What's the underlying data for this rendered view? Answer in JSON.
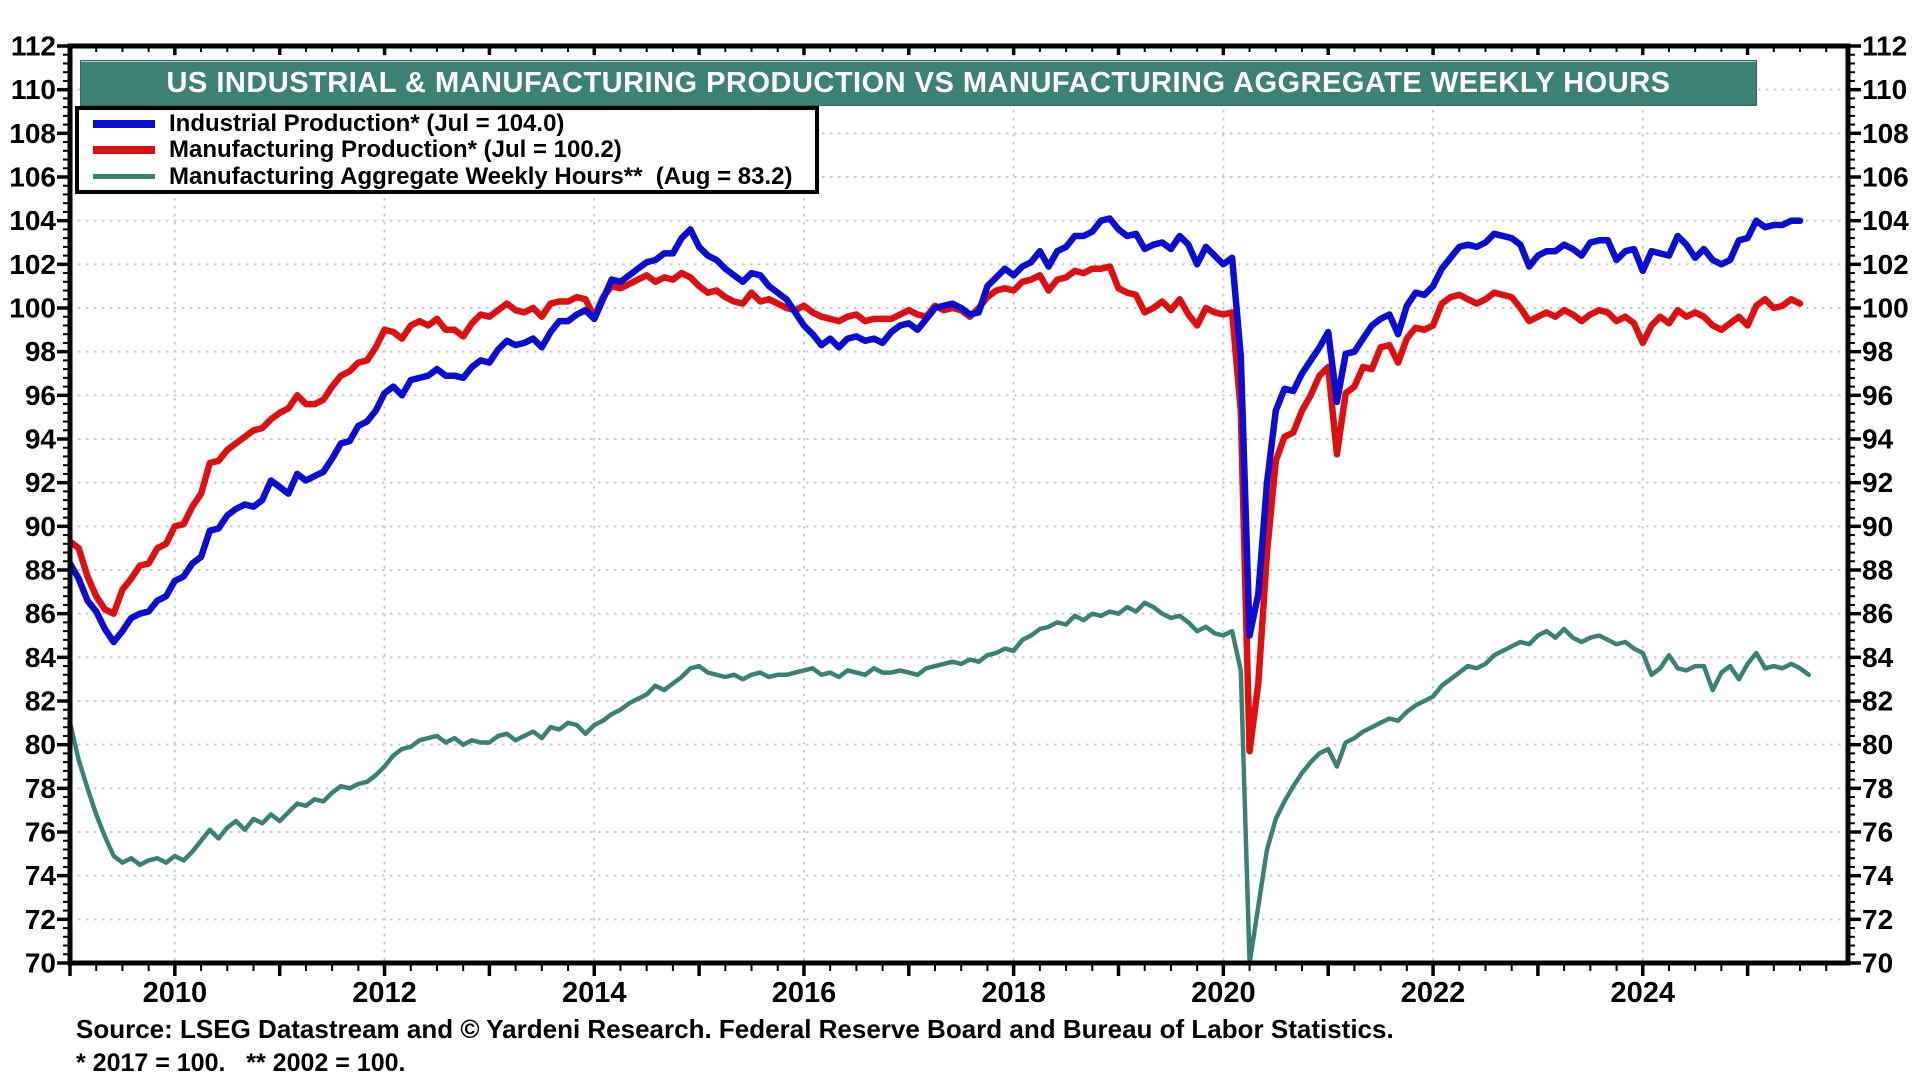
{
  "title": "US INDUSTRIAL & MANUFACTURING PRODUCTION VS MANUFACTURING AGGREGATE WEEKLY HOURS",
  "source_line": "Source: LSEG Datastream and © Yardeni Research. Federal Reserve Board and Bureau of Labor Statistics.",
  "footnote": "* 2017 = 100.   ** 2002 = 100.",
  "colors": {
    "banner": "#3d8174",
    "industrial": "#0d0dd1",
    "manufacturing": "#dc1010",
    "hours": "#3b8173",
    "grid": "#c9c9c9",
    "axis": "#000000",
    "text": "#000000"
  },
  "chart_data": {
    "type": "line",
    "title": "US INDUSTRIAL & MANUFACTURING PRODUCTION VS MANUFACTURING AGGREGATE WEEKLY HOURS",
    "frequency": "monthly",
    "x_start": "2009-01",
    "x_ticks": [
      2010,
      2012,
      2014,
      2016,
      2018,
      2020,
      2022,
      2024
    ],
    "ylim": [
      70,
      112
    ],
    "y_tick_step": 2,
    "y_minor_step": 0.4,
    "x_minor_step_years": 0.25,
    "grid": {
      "horizontal": true,
      "vertical": true,
      "vertical_step_years": 2,
      "style": "dotted"
    },
    "legend_position": "top-left",
    "dual_axis": "left and right y axes identical, 70 to 112 by 2",
    "series": [
      {
        "name": "Industrial Production* (Jul = 104.0)",
        "color": "#0d0dd1",
        "last_label": "Jul = 104.0",
        "values": [
          88.3,
          87.6,
          86.6,
          86.1,
          85.3,
          84.7,
          85.2,
          85.8,
          86.0,
          86.1,
          86.6,
          86.8,
          87.5,
          87.7,
          88.3,
          88.6,
          89.8,
          89.9,
          90.5,
          90.8,
          91.0,
          90.9,
          91.2,
          92.1,
          91.8,
          91.5,
          92.4,
          92.1,
          92.3,
          92.5,
          93.1,
          93.8,
          93.9,
          94.6,
          94.8,
          95.3,
          96.1,
          96.4,
          96.0,
          96.7,
          96.8,
          96.9,
          97.2,
          96.9,
          96.9,
          96.8,
          97.3,
          97.6,
          97.5,
          98.1,
          98.5,
          98.3,
          98.4,
          98.6,
          98.2,
          98.9,
          99.4,
          99.4,
          99.7,
          99.9,
          99.5,
          100.4,
          101.3,
          101.2,
          101.5,
          101.8,
          102.1,
          102.2,
          102.5,
          102.5,
          103.2,
          103.6,
          102.8,
          102.4,
          102.2,
          101.8,
          101.5,
          101.2,
          101.6,
          101.5,
          101.0,
          100.7,
          100.4,
          99.8,
          99.2,
          98.8,
          98.3,
          98.6,
          98.2,
          98.6,
          98.7,
          98.5,
          98.6,
          98.4,
          98.9,
          99.2,
          99.3,
          99.0,
          99.5,
          100.0,
          100.1,
          100.2,
          100.0,
          99.7,
          99.8,
          101.0,
          101.4,
          101.8,
          101.5,
          101.9,
          102.1,
          102.6,
          101.9,
          102.6,
          102.8,
          103.3,
          103.3,
          103.5,
          104.0,
          104.1,
          103.6,
          103.3,
          103.4,
          102.7,
          102.9,
          103.0,
          102.7,
          103.3,
          102.9,
          102.0,
          102.8,
          102.4,
          102.0,
          102.3,
          97.8,
          85.0,
          86.9,
          92.0,
          95.3,
          96.3,
          96.2,
          97.0,
          97.6,
          98.2,
          98.9,
          95.7,
          97.9,
          98.0,
          98.6,
          99.2,
          99.5,
          99.7,
          98.8,
          100.1,
          100.7,
          100.6,
          101.0,
          101.8,
          102.3,
          102.8,
          102.9,
          102.8,
          103.0,
          103.4,
          103.3,
          103.2,
          102.9,
          101.9,
          102.4,
          102.6,
          102.6,
          102.9,
          102.7,
          102.4,
          103.0,
          103.1,
          103.1,
          102.2,
          102.6,
          102.7,
          101.7,
          102.6,
          102.5,
          102.4,
          103.3,
          102.9,
          102.3,
          102.7,
          102.2,
          102.0,
          102.2,
          103.1,
          103.2,
          104.0,
          103.7,
          103.8,
          103.8,
          104.0,
          104.0
        ]
      },
      {
        "name": "Manufacturing Production* (Jul = 100.2)",
        "color": "#dc1010",
        "last_label": "Jul = 100.2",
        "values": [
          89.3,
          89.0,
          87.7,
          86.8,
          86.2,
          86.0,
          87.1,
          87.6,
          88.2,
          88.3,
          89.0,
          89.2,
          90.0,
          90.1,
          90.9,
          91.5,
          92.9,
          93.0,
          93.5,
          93.8,
          94.1,
          94.4,
          94.5,
          94.9,
          95.2,
          95.4,
          96.0,
          95.6,
          95.6,
          95.8,
          96.4,
          96.9,
          97.1,
          97.5,
          97.6,
          98.2,
          99.0,
          98.9,
          98.6,
          99.2,
          99.4,
          99.2,
          99.5,
          99.0,
          99.0,
          98.7,
          99.3,
          99.7,
          99.6,
          99.9,
          100.2,
          99.9,
          99.8,
          100.0,
          99.6,
          100.2,
          100.3,
          100.3,
          100.5,
          100.4,
          99.6,
          100.5,
          101.0,
          100.9,
          101.1,
          101.3,
          101.5,
          101.2,
          101.4,
          101.3,
          101.6,
          101.4,
          101.0,
          100.7,
          100.8,
          100.5,
          100.3,
          100.2,
          100.7,
          100.3,
          100.4,
          100.2,
          100.0,
          99.9,
          100.1,
          99.8,
          99.6,
          99.5,
          99.4,
          99.6,
          99.7,
          99.4,
          99.5,
          99.5,
          99.5,
          99.7,
          99.9,
          99.7,
          99.6,
          100.1,
          99.9,
          100.0,
          99.9,
          99.6,
          100.0,
          100.5,
          100.8,
          100.9,
          100.8,
          101.2,
          101.3,
          101.5,
          100.8,
          101.3,
          101.4,
          101.7,
          101.6,
          101.8,
          101.8,
          101.9,
          100.9,
          100.7,
          100.6,
          99.8,
          100.0,
          100.3,
          99.9,
          100.4,
          99.7,
          99.2,
          100.0,
          99.8,
          99.7,
          99.8,
          95.3,
          79.7,
          82.8,
          88.8,
          93.0,
          94.1,
          94.3,
          95.3,
          96.0,
          96.9,
          97.3,
          93.3,
          96.1,
          96.4,
          97.3,
          97.2,
          98.2,
          98.3,
          97.5,
          98.6,
          99.1,
          99.0,
          99.2,
          100.2,
          100.5,
          100.6,
          100.4,
          100.2,
          100.4,
          100.7,
          100.6,
          100.5,
          100.0,
          99.4,
          99.6,
          99.8,
          99.6,
          99.9,
          99.7,
          99.4,
          99.7,
          99.9,
          99.8,
          99.4,
          99.6,
          99.3,
          98.4,
          99.2,
          99.6,
          99.3,
          99.9,
          99.6,
          99.8,
          99.6,
          99.2,
          99.0,
          99.3,
          99.6,
          99.2,
          100.1,
          100.4,
          100.0,
          100.1,
          100.4,
          100.2
        ]
      },
      {
        "name": "Manufacturing Aggregate Weekly Hours**  (Aug = 83.2)",
        "color": "#3b8173",
        "last_label": "Aug = 83.2",
        "values": [
          81.0,
          79.3,
          78.0,
          76.8,
          75.8,
          74.9,
          74.6,
          74.8,
          74.5,
          74.7,
          74.8,
          74.6,
          74.9,
          74.7,
          75.1,
          75.6,
          76.1,
          75.7,
          76.2,
          76.5,
          76.1,
          76.6,
          76.4,
          76.8,
          76.5,
          76.9,
          77.3,
          77.2,
          77.5,
          77.4,
          77.8,
          78.1,
          78.0,
          78.2,
          78.3,
          78.6,
          79.0,
          79.5,
          79.8,
          79.9,
          80.2,
          80.3,
          80.4,
          80.1,
          80.3,
          80.0,
          80.2,
          80.1,
          80.1,
          80.4,
          80.5,
          80.2,
          80.4,
          80.6,
          80.3,
          80.8,
          80.7,
          81.0,
          80.9,
          80.5,
          80.9,
          81.1,
          81.4,
          81.6,
          81.9,
          82.1,
          82.3,
          82.7,
          82.5,
          82.8,
          83.1,
          83.5,
          83.6,
          83.3,
          83.2,
          83.1,
          83.2,
          83.0,
          83.2,
          83.3,
          83.1,
          83.2,
          83.2,
          83.3,
          83.4,
          83.5,
          83.2,
          83.3,
          83.1,
          83.4,
          83.3,
          83.2,
          83.5,
          83.3,
          83.3,
          83.4,
          83.3,
          83.2,
          83.5,
          83.6,
          83.7,
          83.8,
          83.7,
          83.9,
          83.8,
          84.1,
          84.2,
          84.4,
          84.3,
          84.8,
          85.0,
          85.3,
          85.4,
          85.6,
          85.5,
          85.9,
          85.7,
          86.0,
          85.9,
          86.1,
          86.0,
          86.3,
          86.1,
          86.5,
          86.3,
          86.0,
          85.8,
          85.9,
          85.6,
          85.2,
          85.4,
          85.1,
          85.0,
          85.2,
          83.4,
          70.0,
          72.6,
          75.2,
          76.6,
          77.4,
          78.1,
          78.7,
          79.2,
          79.6,
          79.8,
          79.0,
          80.1,
          80.3,
          80.6,
          80.8,
          81.0,
          81.2,
          81.1,
          81.5,
          81.8,
          82.0,
          82.2,
          82.7,
          83.0,
          83.3,
          83.6,
          83.5,
          83.7,
          84.1,
          84.3,
          84.5,
          84.7,
          84.6,
          85.0,
          85.2,
          84.9,
          85.3,
          84.9,
          84.7,
          84.9,
          85.0,
          84.8,
          84.6,
          84.7,
          84.4,
          84.2,
          83.2,
          83.5,
          84.1,
          83.5,
          83.4,
          83.6,
          83.6,
          82.5,
          83.3,
          83.6,
          83.0,
          83.7,
          84.2,
          83.5,
          83.6,
          83.5,
          83.7,
          83.5,
          83.2
        ]
      }
    ]
  }
}
